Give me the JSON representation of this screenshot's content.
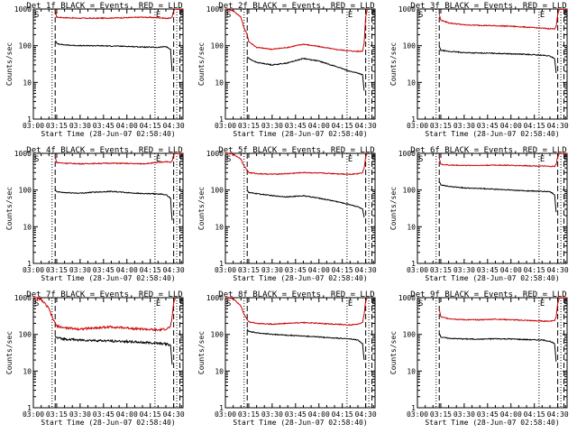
{
  "figure": {
    "x_ticks": [
      "03:00",
      "03:15",
      "03:30",
      "03:45",
      "04:00",
      "04:15",
      "04:30"
    ],
    "y_ticks": [
      "1",
      "10",
      "100",
      "1000"
    ],
    "xlabel": "Start Time (28-Jun-07 02:58:40)",
    "ylabel": "Counts/sec",
    "colors": {
      "events": "#000000",
      "lld": "#cc0000"
    }
  },
  "chart_data": [
    {
      "type": "line",
      "title": "Det 1f BLACK = Events, RED = LLD",
      "xlabel": "Start Time (28-Jun-07 02:58:40)",
      "ylabel": "Counts/sec",
      "x_unit": "minutes after 03:00",
      "xlim": [
        0,
        96
      ],
      "ylim": [
        1,
        1000
      ],
      "y_scale": "log",
      "markers": [
        {
          "label": "S",
          "x": 0
        },
        {
          "label": "E",
          "x": 78
        },
        {
          "label": "S",
          "x": 93
        }
      ],
      "dotted_lines": [
        12,
        78,
        92
      ],
      "dashed_lines": [
        14,
        90,
        94
      ],
      "series": [
        {
          "color": "#cc0000",
          "x": [
            14,
            15,
            20,
            30,
            40,
            50,
            60,
            70,
            80,
            85,
            88,
            89,
            90,
            91,
            96
          ],
          "y": [
            900,
            600,
            580,
            560,
            560,
            570,
            580,
            600,
            580,
            560,
            560,
            620,
            900,
            1000,
            1000
          ]
        },
        {
          "color": "#000000",
          "x": [
            14,
            15,
            20,
            30,
            40,
            50,
            60,
            70,
            80,
            85,
            88,
            89
          ],
          "y": [
            140,
            115,
            105,
            100,
            100,
            98,
            96,
            92,
            90,
            95,
            80,
            20
          ]
        }
      ]
    },
    {
      "type": "line",
      "title": "Det 2f BLACK = Events, RED = LLD",
      "xlabel": "Start Time (28-Jun-07 02:58:40)",
      "ylabel": "Counts/sec",
      "x_unit": "minutes after 03:00",
      "xlim": [
        0,
        96
      ],
      "ylim": [
        1,
        1000
      ],
      "y_scale": "log",
      "markers": [
        {
          "label": "S",
          "x": 0
        },
        {
          "label": "E",
          "x": 78
        },
        {
          "label": "S",
          "x": 93
        }
      ],
      "dotted_lines": [
        12,
        78,
        92
      ],
      "dashed_lines": [
        14,
        90,
        94
      ],
      "series": [
        {
          "color": "#cc0000",
          "x": [
            0,
            5,
            10,
            12,
            14,
            15,
            20,
            30,
            40,
            50,
            60,
            70,
            80,
            85,
            88,
            89,
            90,
            91
          ],
          "y": [
            1000,
            900,
            600,
            300,
            200,
            130,
            90,
            80,
            90,
            110,
            95,
            80,
            72,
            70,
            72,
            120,
            600,
            1000
          ]
        },
        {
          "color": "#000000",
          "x": [
            14,
            15,
            20,
            30,
            40,
            50,
            60,
            70,
            80,
            85,
            88,
            89
          ],
          "y": [
            50,
            45,
            35,
            30,
            34,
            45,
            38,
            28,
            20,
            18,
            16,
            6
          ]
        }
      ]
    },
    {
      "type": "line",
      "title": "Det 3f BLACK = Events, RED = LLD",
      "xlabel": "Start Time (28-Jun-07 02:58:40)",
      "ylabel": "Counts/sec",
      "x_unit": "minutes after 03:00",
      "xlim": [
        0,
        96
      ],
      "ylim": [
        1,
        1000
      ],
      "y_scale": "log",
      "markers": [
        {
          "label": "S",
          "x": 0
        },
        {
          "label": "E",
          "x": 78
        },
        {
          "label": "S",
          "x": 93
        }
      ],
      "dotted_lines": [
        12,
        78,
        92
      ],
      "dashed_lines": [
        14,
        90,
        94
      ],
      "series": [
        {
          "color": "#cc0000",
          "x": [
            14,
            15,
            20,
            30,
            40,
            50,
            60,
            70,
            80,
            85,
            88,
            89,
            90,
            91,
            96
          ],
          "y": [
            700,
            500,
            420,
            370,
            360,
            350,
            340,
            320,
            300,
            290,
            290,
            330,
            700,
            1000,
            1000
          ]
        },
        {
          "color": "#000000",
          "x": [
            14,
            15,
            20,
            30,
            40,
            50,
            60,
            70,
            80,
            85,
            88,
            89
          ],
          "y": [
            95,
            75,
            70,
            65,
            63,
            62,
            60,
            58,
            55,
            52,
            45,
            18
          ]
        }
      ]
    },
    {
      "type": "line",
      "title": "Det 4f BLACK = Events, RED = LLD",
      "xlabel": "Start Time (28-Jun-07 02:58:40)",
      "ylabel": "Counts/sec",
      "x_unit": "minutes after 03:00",
      "xlim": [
        0,
        96
      ],
      "ylim": [
        1,
        1000
      ],
      "y_scale": "log",
      "markers": [
        {
          "label": "S",
          "x": 0
        },
        {
          "label": "E",
          "x": 78
        },
        {
          "label": "S",
          "x": 93
        }
      ],
      "dotted_lines": [
        12,
        78,
        92
      ],
      "dashed_lines": [
        14,
        90,
        94
      ],
      "series": [
        {
          "color": "#cc0000",
          "x": [
            14,
            15,
            20,
            30,
            40,
            50,
            60,
            70,
            80,
            85,
            88,
            89,
            90,
            91,
            96
          ],
          "y": [
            800,
            560,
            540,
            520,
            530,
            540,
            530,
            520,
            560,
            600,
            560,
            620,
            900,
            1000,
            1000
          ]
        },
        {
          "color": "#000000",
          "x": [
            14,
            15,
            20,
            30,
            40,
            50,
            60,
            70,
            80,
            85,
            88,
            89
          ],
          "y": [
            100,
            90,
            85,
            82,
            88,
            92,
            85,
            80,
            78,
            75,
            60,
            15
          ]
        }
      ]
    },
    {
      "type": "line",
      "title": "Det 5f BLACK = Events, RED = LLD",
      "xlabel": "Start Time (28-Jun-07 02:58:40)",
      "ylabel": "Counts/sec",
      "x_unit": "minutes after 03:00",
      "xlim": [
        0,
        96
      ],
      "ylim": [
        1,
        1000
      ],
      "y_scale": "log",
      "markers": [
        {
          "label": "S",
          "x": 0
        },
        {
          "label": "E",
          "x": 78
        },
        {
          "label": "S",
          "x": 93
        }
      ],
      "dotted_lines": [
        12,
        78,
        92
      ],
      "dashed_lines": [
        14,
        90,
        94
      ],
      "series": [
        {
          "color": "#cc0000",
          "x": [
            0,
            5,
            10,
            12,
            14,
            15,
            20,
            30,
            40,
            50,
            60,
            70,
            80,
            85,
            88,
            89,
            90,
            91
          ],
          "y": [
            1000,
            950,
            700,
            450,
            350,
            300,
            280,
            270,
            280,
            300,
            290,
            280,
            270,
            280,
            300,
            400,
            800,
            1000
          ]
        },
        {
          "color": "#000000",
          "x": [
            14,
            15,
            20,
            30,
            40,
            50,
            60,
            70,
            80,
            85,
            88,
            89
          ],
          "y": [
            100,
            85,
            80,
            70,
            65,
            70,
            60,
            50,
            40,
            35,
            30,
            18
          ]
        }
      ]
    },
    {
      "type": "line",
      "title": "Det 6f BLACK = Events, RED = LLD",
      "xlabel": "Start Time (28-Jun-07 02:58:40)",
      "ylabel": "Counts/sec",
      "x_unit": "minutes after 03:00",
      "xlim": [
        0,
        96
      ],
      "ylim": [
        1,
        1000
      ],
      "y_scale": "log",
      "markers": [
        {
          "label": "S",
          "x": 0
        },
        {
          "label": "E",
          "x": 78
        },
        {
          "label": "S",
          "x": 93
        }
      ],
      "dotted_lines": [
        12,
        78,
        92
      ],
      "dashed_lines": [
        14,
        90,
        94
      ],
      "series": [
        {
          "color": "#cc0000",
          "x": [
            14,
            15,
            20,
            30,
            40,
            50,
            60,
            70,
            80,
            85,
            88,
            89,
            90,
            91,
            96
          ],
          "y": [
            750,
            500,
            480,
            470,
            470,
            480,
            470,
            460,
            450,
            440,
            440,
            500,
            800,
            1000,
            1000
          ]
        },
        {
          "color": "#000000",
          "x": [
            14,
            15,
            20,
            30,
            40,
            50,
            60,
            70,
            80,
            85,
            88,
            89
          ],
          "y": [
            170,
            140,
            125,
            115,
            110,
            105,
            100,
            95,
            92,
            90,
            75,
            25
          ]
        }
      ]
    },
    {
      "type": "line",
      "title": "Det 7f BLACK = Events, RED = LLD",
      "xlabel": "Start Time (28-Jun-07 02:58:40)",
      "ylabel": "Counts/sec",
      "x_unit": "minutes after 03:00",
      "xlim": [
        0,
        96
      ],
      "ylim": [
        1,
        1000
      ],
      "y_scale": "log",
      "markers": [
        {
          "label": "S",
          "x": 0
        },
        {
          "label": "E",
          "x": 78
        },
        {
          "label": "S",
          "x": 93
        }
      ],
      "dotted_lines": [
        12,
        78,
        92
      ],
      "dashed_lines": [
        14,
        90,
        94
      ],
      "series": [
        {
          "color": "#cc0000",
          "x": [
            0,
            5,
            10,
            12,
            14,
            15,
            20,
            30,
            40,
            50,
            60,
            70,
            80,
            85,
            88,
            89,
            90,
            91
          ],
          "y": [
            1000,
            900,
            500,
            300,
            200,
            170,
            150,
            140,
            150,
            160,
            150,
            140,
            130,
            140,
            160,
            300,
            700,
            1000
          ]
        },
        {
          "color": "#000000",
          "x": [
            14,
            15,
            20,
            30,
            40,
            50,
            60,
            70,
            80,
            85,
            88,
            89
          ],
          "y": [
            90,
            80,
            75,
            70,
            68,
            66,
            64,
            60,
            58,
            55,
            50,
            15
          ]
        }
      ]
    },
    {
      "type": "line",
      "title": "Det 8f BLACK = Events, RED = LLD",
      "xlabel": "Start Time (28-Jun-07 02:58:40)",
      "ylabel": "Counts/sec",
      "x_unit": "minutes after 03:00",
      "xlim": [
        0,
        96
      ],
      "ylim": [
        1,
        1000
      ],
      "y_scale": "log",
      "markers": [
        {
          "label": "S",
          "x": 0
        },
        {
          "label": "E",
          "x": 78
        },
        {
          "label": "S",
          "x": 93
        }
      ],
      "dotted_lines": [
        12,
        78,
        92
      ],
      "dashed_lines": [
        14,
        90,
        94
      ],
      "series": [
        {
          "color": "#cc0000",
          "x": [
            0,
            5,
            10,
            12,
            14,
            15,
            20,
            30,
            40,
            50,
            60,
            70,
            80,
            85,
            88,
            89,
            90,
            91
          ],
          "y": [
            1000,
            950,
            600,
            350,
            250,
            220,
            200,
            190,
            200,
            210,
            200,
            190,
            180,
            190,
            210,
            350,
            800,
            1000
          ]
        },
        {
          "color": "#000000",
          "x": [
            14,
            15,
            20,
            30,
            40,
            50,
            60,
            70,
            80,
            85,
            88,
            89
          ],
          "y": [
            140,
            120,
            110,
            100,
            95,
            90,
            85,
            80,
            75,
            70,
            55,
            20
          ]
        }
      ]
    },
    {
      "type": "line",
      "title": "Det 9f BLACK = Events, RED = LLD",
      "xlabel": "Start Time (28-Jun-07 02:58:40)",
      "ylabel": "Counts/sec",
      "x_unit": "minutes after 03:00",
      "xlim": [
        0,
        96
      ],
      "ylim": [
        1,
        1000
      ],
      "y_scale": "log",
      "markers": [
        {
          "label": "S",
          "x": 0
        },
        {
          "label": "E",
          "x": 78
        },
        {
          "label": "S",
          "x": 93
        }
      ],
      "dotted_lines": [
        12,
        78,
        92
      ],
      "dashed_lines": [
        14,
        90,
        94
      ],
      "series": [
        {
          "color": "#cc0000",
          "x": [
            14,
            15,
            20,
            30,
            40,
            50,
            60,
            70,
            80,
            85,
            88,
            89,
            90,
            91,
            96
          ],
          "y": [
            500,
            300,
            270,
            250,
            250,
            260,
            250,
            240,
            230,
            230,
            240,
            300,
            700,
            1000,
            1000
          ]
        },
        {
          "color": "#000000",
          "x": [
            14,
            15,
            20,
            30,
            40,
            50,
            60,
            70,
            80,
            85,
            88,
            89
          ],
          "y": [
            110,
            85,
            78,
            75,
            74,
            76,
            75,
            72,
            70,
            65,
            55,
            18
          ]
        }
      ]
    }
  ]
}
